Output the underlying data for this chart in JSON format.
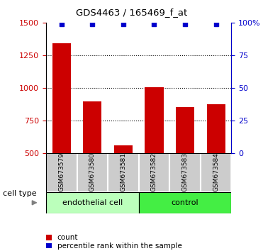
{
  "title": "GDS4463 / 165469_f_at",
  "samples": [
    "GSM673579",
    "GSM673580",
    "GSM673581",
    "GSM673582",
    "GSM673583",
    "GSM673584"
  ],
  "counts": [
    1340,
    895,
    560,
    1005,
    855,
    875
  ],
  "percentiles": [
    99,
    99,
    99,
    99,
    99,
    99
  ],
  "ylim_left": [
    500,
    1500
  ],
  "ylim_right": [
    0,
    100
  ],
  "yticks_left": [
    500,
    750,
    1000,
    1250,
    1500
  ],
  "yticks_right": [
    0,
    25,
    50,
    75,
    100
  ],
  "ytick_labels_right": [
    "0",
    "25",
    "50",
    "75",
    "100%"
  ],
  "bar_color": "#cc0000",
  "dot_color": "#0000cc",
  "cell_types": [
    {
      "label": "endothelial cell",
      "indices": [
        0,
        1,
        2
      ],
      "color": "#bbffbb"
    },
    {
      "label": "control",
      "indices": [
        3,
        4,
        5
      ],
      "color": "#44ee44"
    }
  ],
  "cell_type_label": "cell type",
  "legend_count_label": "count",
  "legend_percentile_label": "percentile rank within the sample",
  "dotted_line_color": "#000000",
  "background_color": "#ffffff",
  "left_axis_color": "#cc0000",
  "right_axis_color": "#0000cc",
  "bar_width": 0.6,
  "tick_box_color": "#cccccc",
  "grid_ticks": [
    750,
    1000,
    1250
  ],
  "cell_type_border_color": "#000000"
}
